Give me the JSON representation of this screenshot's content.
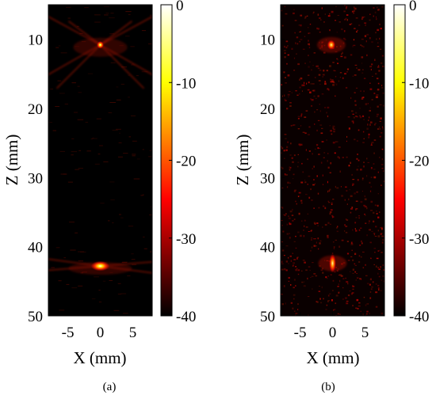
{
  "chart_data": [
    {
      "type": "heatmap",
      "panel_label": "(a)",
      "xlabel": "X (mm)",
      "ylabel": "Z (mm)",
      "xlim": [
        -8,
        8
      ],
      "ylim": [
        5,
        50
      ],
      "y_inverted": true,
      "xticks": [
        -5,
        0,
        5
      ],
      "yticks": [
        10,
        20,
        30,
        40,
        50
      ],
      "colorbar": {
        "ticks": [
          0,
          -10,
          -20,
          -30,
          -40
        ],
        "range": [
          -40,
          0
        ],
        "colormap": "hot"
      },
      "point_targets": [
        {
          "x": 0,
          "z": 10.8,
          "peak_db": 0,
          "width_mm": 0.6,
          "height_mm": 0.6
        },
        {
          "x": 0,
          "z": 42.8,
          "peak_db": 0,
          "width_mm": 1.6,
          "height_mm": 0.8
        }
      ]
    },
    {
      "type": "heatmap",
      "panel_label": "(b)",
      "xlabel": "X (mm)",
      "ylabel": "Z (mm)",
      "xlim": [
        -8,
        8
      ],
      "ylim": [
        5,
        50
      ],
      "y_inverted": true,
      "xticks": [
        -5,
        0,
        5
      ],
      "yticks": [
        10,
        20,
        30,
        40,
        50
      ],
      "colorbar": {
        "ticks": [
          0,
          -10,
          -20,
          -30,
          -40
        ],
        "range": [
          -40,
          0
        ],
        "colormap": "hot"
      },
      "point_targets": [
        {
          "x": -0.2,
          "z": 10.8,
          "peak_db": -5,
          "width_mm": 0.7,
          "height_mm": 0.8
        },
        {
          "x": 0,
          "z": 42.4,
          "peak_db": -6,
          "width_mm": 0.6,
          "height_mm": 1.5
        }
      ]
    }
  ]
}
